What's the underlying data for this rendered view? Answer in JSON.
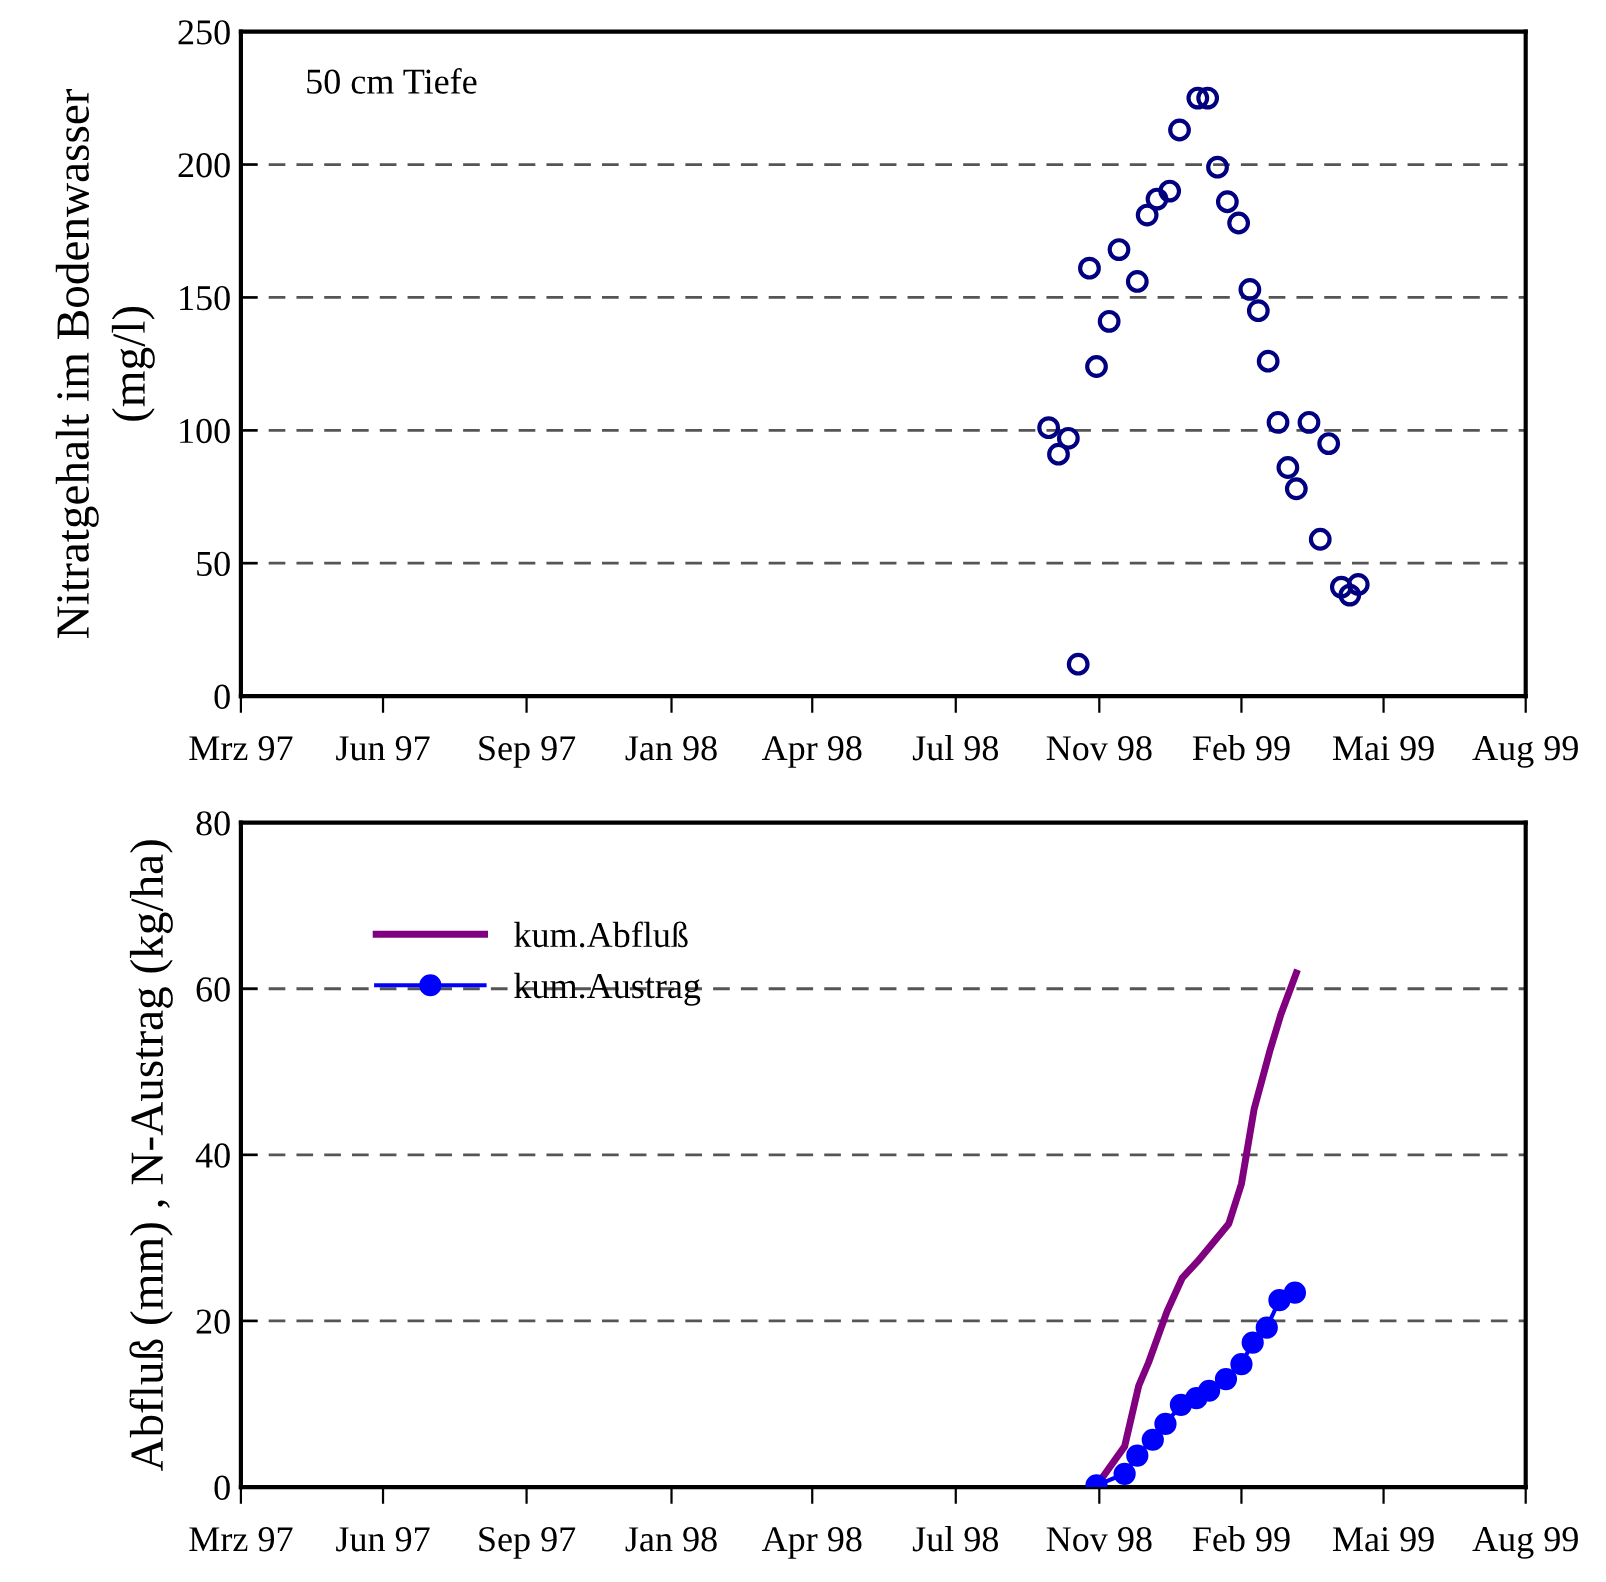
{
  "chart_data": [
    {
      "type": "scatter",
      "ylabel": "Nitratgehalt im Bodenwasser\n(mg/l)",
      "annotations": [
        "50 cm Tiefe"
      ],
      "marker": "circle",
      "grid": "y",
      "legend": false,
      "xlim": [
        "1997-03-01",
        "1999-08-31"
      ],
      "ylim": [
        0,
        250
      ],
      "yticks": [
        0,
        50,
        100,
        150,
        200,
        250
      ],
      "xticks": [
        {
          "value": "1997-03-01",
          "label": "Mrz 97"
        },
        {
          "value": "1997-06-10",
          "label": "Jun 97"
        },
        {
          "value": "1997-09-20",
          "label": "Sep 97"
        },
        {
          "value": "1998-01-01",
          "label": "Jan 98"
        },
        {
          "value": "1998-04-11",
          "label": "Apr 98"
        },
        {
          "value": "1998-07-22",
          "label": "Jul 98"
        },
        {
          "value": "1998-11-01",
          "label": "Nov 98"
        },
        {
          "value": "1999-02-10",
          "label": "Feb 99"
        },
        {
          "value": "1999-05-22",
          "label": "Mai 99"
        },
        {
          "value": "1999-08-31",
          "label": "Aug 99"
        }
      ],
      "series": [
        {
          "color": "#000080",
          "x": [
            "1998-09-26",
            "1998-10-03",
            "1998-10-10",
            "1998-10-17",
            "1998-10-25",
            "1998-10-30",
            "1998-11-08",
            "1998-11-15",
            "1998-11-28",
            "1998-12-05",
            "1998-12-12",
            "1998-12-21",
            "1998-12-28",
            "1999-01-10",
            "1999-01-17",
            "1999-01-24",
            "1999-01-31",
            "1999-02-08",
            "1999-02-16",
            "1999-02-22",
            "1999-03-01",
            "1999-03-08",
            "1999-03-15",
            "1999-03-21",
            "1999-03-30",
            "1999-04-07",
            "1999-04-13",
            "1999-04-22",
            "1999-04-28",
            "1999-05-04"
          ],
          "values": [
            101,
            91,
            97,
            12,
            161,
            124,
            141,
            168,
            156,
            181,
            187,
            190,
            213,
            225,
            225,
            199,
            186,
            178,
            153,
            145,
            126,
            103,
            86,
            78,
            103,
            59,
            95,
            41,
            38,
            42
          ]
        }
      ]
    },
    {
      "type": "line",
      "ylabel": "Abfluß (mm) , N-Austrag (kg/ha)",
      "grid": "y",
      "legend": "top left",
      "xlim": [
        "1997-03-01",
        "1999-08-31"
      ],
      "ylim": [
        0,
        80
      ],
      "yticks": [
        0,
        20,
        40,
        60,
        80
      ],
      "xticks": [
        {
          "value": "1997-03-01",
          "label": "Mrz 97"
        },
        {
          "value": "1997-06-10",
          "label": "Jun 97"
        },
        {
          "value": "1997-09-20",
          "label": "Sep 97"
        },
        {
          "value": "1998-01-01",
          "label": "Jan 98"
        },
        {
          "value": "1998-04-11",
          "label": "Apr 98"
        },
        {
          "value": "1998-07-22",
          "label": "Jul 98"
        },
        {
          "value": "1998-11-01",
          "label": "Nov 98"
        },
        {
          "value": "1999-02-10",
          "label": "Feb 99"
        },
        {
          "value": "1999-05-22",
          "label": "Mai 99"
        },
        {
          "value": "1999-08-31",
          "label": "Aug 99"
        }
      ],
      "series": [
        {
          "name": "kum.Abfluß",
          "color": "#800080",
          "marker": "none",
          "x": [
            "1998-10-31",
            "1998-11-19",
            "1998-11-29",
            "1998-12-06",
            "1998-12-19",
            "1998-12-30",
            "1999-01-10",
            "1999-02-01",
            "1999-02-10",
            "1999-02-19",
            "1999-03-02",
            "1999-03-10",
            "1999-03-21"
          ],
          "values": [
            0.4,
            4.9,
            12.2,
            15.0,
            21.1,
            25.2,
            27.2,
            31.7,
            36.5,
            45.5,
            52.4,
            56.9,
            61.9
          ]
        },
        {
          "name": "kum.Austrag",
          "color": "#0000ff",
          "marker": "circle",
          "x": [
            "1998-10-30",
            "1998-11-19",
            "1998-11-28",
            "1998-12-09",
            "1998-12-18",
            "1998-12-29",
            "1999-01-09",
            "1999-01-18",
            "1999-01-30",
            "1999-02-10",
            "1999-02-18",
            "1999-02-28",
            "1999-03-09",
            "1999-03-20"
          ],
          "values": [
            0.2,
            1.6,
            3.8,
            5.7,
            7.6,
            9.9,
            10.7,
            11.6,
            13.0,
            14.8,
            17.4,
            19.2,
            22.5,
            23.4
          ]
        }
      ]
    }
  ]
}
